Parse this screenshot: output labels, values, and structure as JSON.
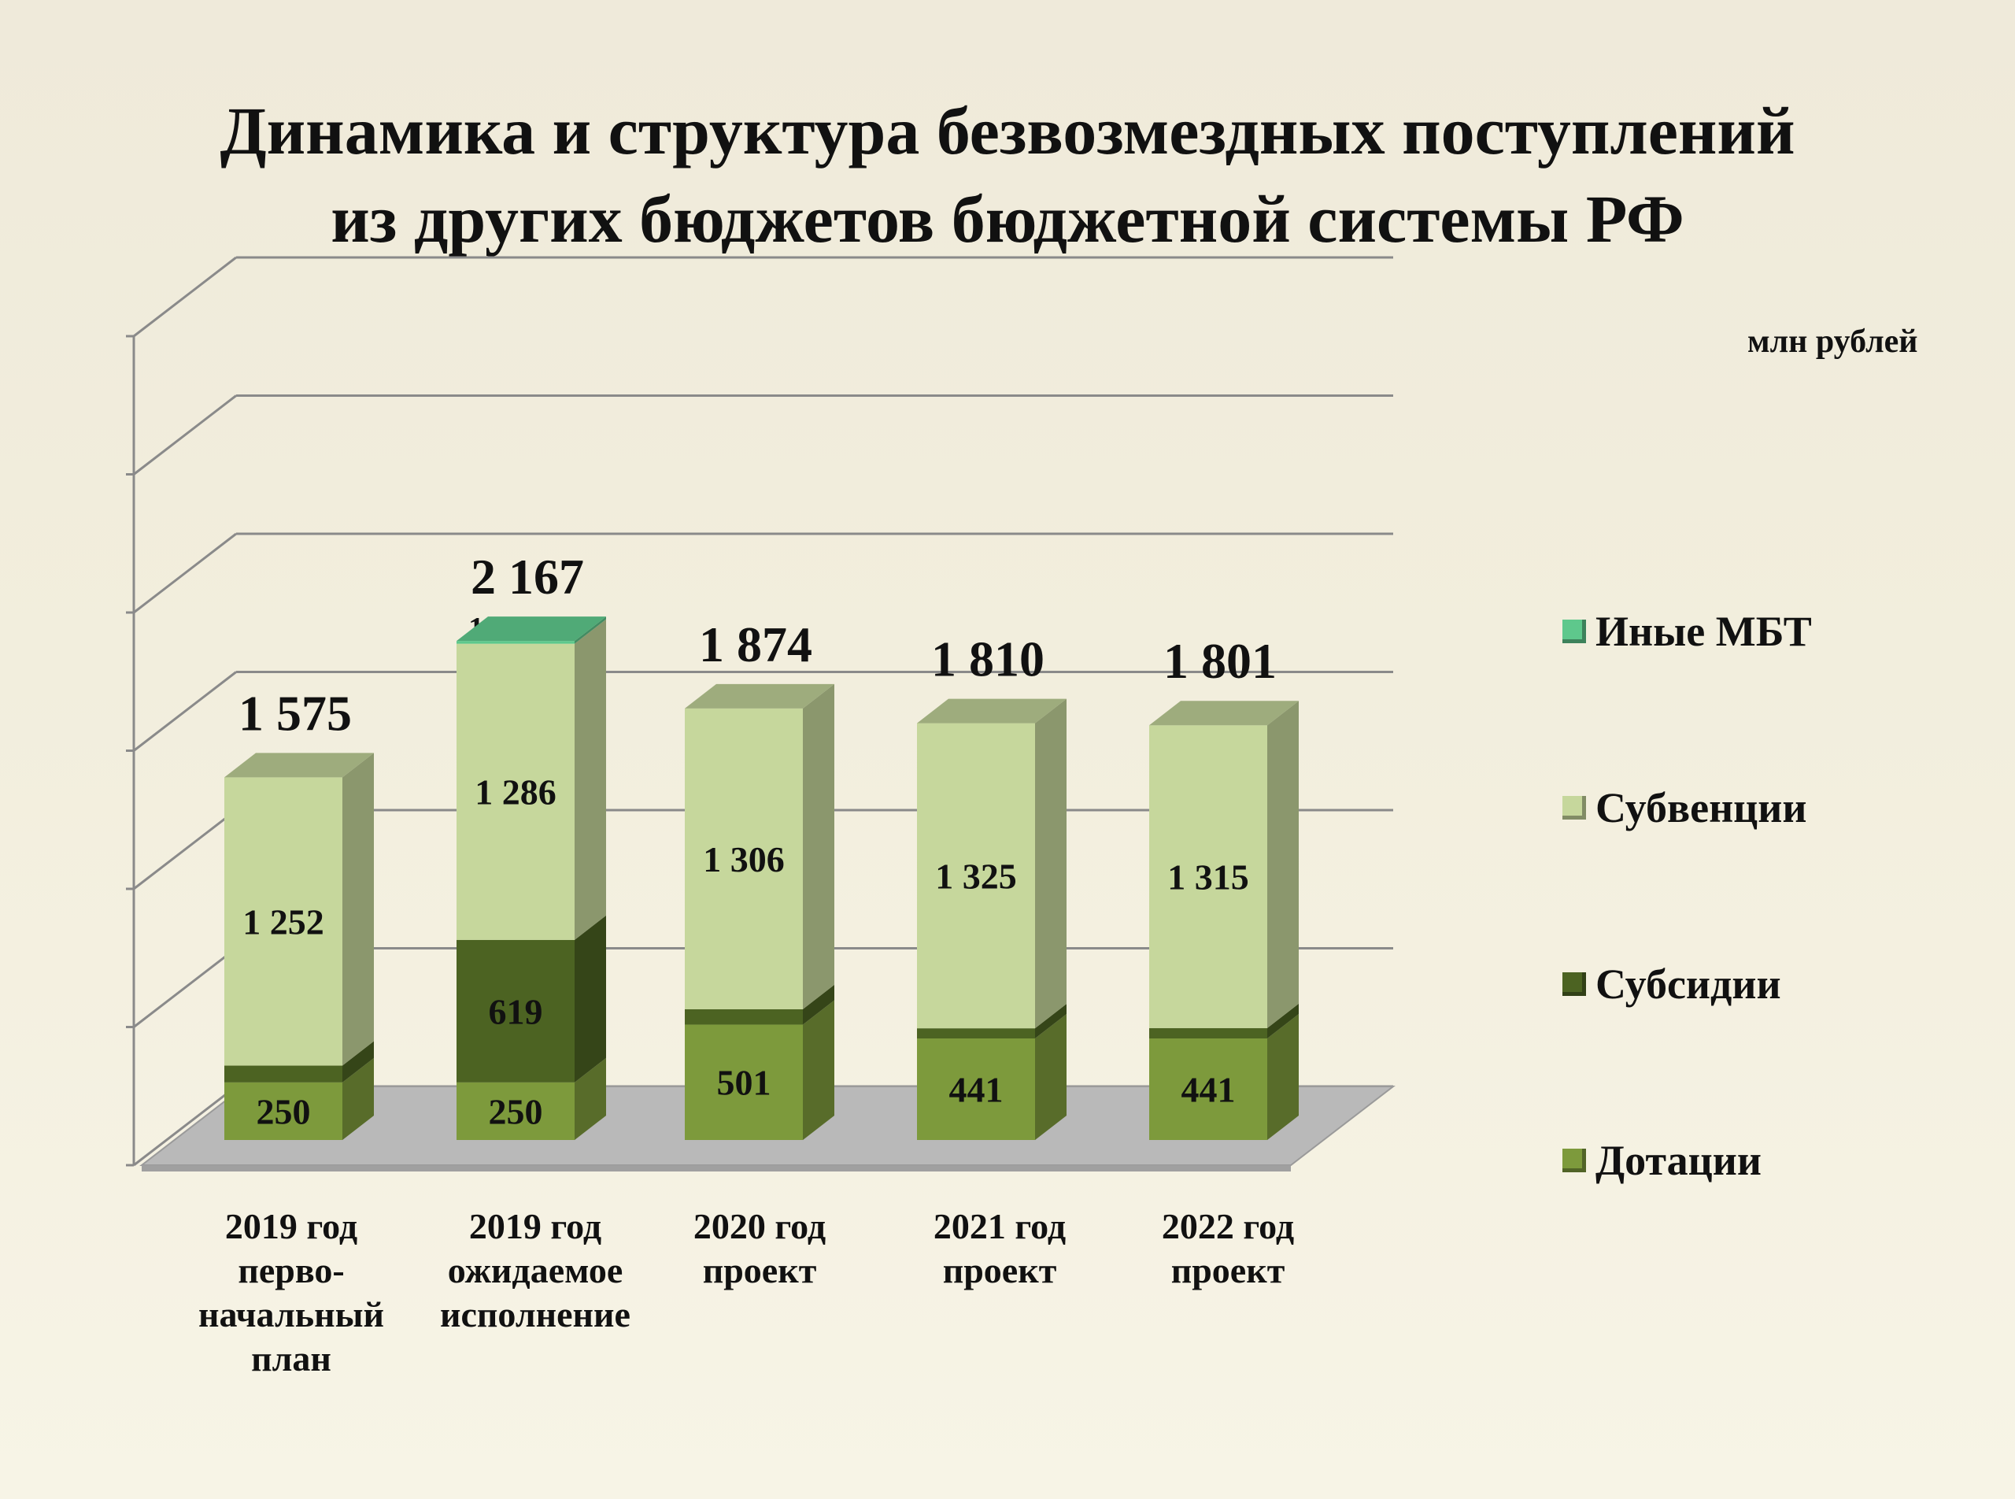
{
  "chart_data": {
    "type": "bar",
    "stacked": true,
    "three_d": true,
    "title": "Динамика и структура безвозмездных поступлений\nиз других бюджетов бюджетной системы РФ",
    "unit": "млн рублей",
    "categories": [
      "2019 год\nперво-\nначальный\nплан",
      "2019 год\nожидаемое\nисполнение",
      "2020 год\nпроект",
      "2021 год\nпроект",
      "2022 год\nпроект"
    ],
    "totals": [
      "1 575",
      "2 167",
      "1 874",
      "1 810",
      "1 801"
    ],
    "series": [
      {
        "name": "Дотации",
        "values": [
          250,
          250,
          501,
          441,
          441
        ],
        "labels": [
          "250",
          "250",
          "501",
          "441",
          "441"
        ],
        "color": "#7d9a3c"
      },
      {
        "name": "Субсидии",
        "values": [
          73,
          619,
          67,
          44,
          45
        ],
        "labels": [
          "73",
          "619",
          "67",
          "44",
          "45"
        ],
        "color": "#4c6322"
      },
      {
        "name": "Субвенции",
        "values": [
          1252,
          1286,
          1306,
          1325,
          1315
        ],
        "labels": [
          "1 252",
          "1 286",
          "1 306",
          "1 325",
          "1 315"
        ],
        "color": "#c6d79c"
      },
      {
        "name": "Иные МБТ",
        "values": [
          0,
          12,
          0,
          0,
          0
        ],
        "labels": [
          "",
          "12",
          "",
          "",
          ""
        ],
        "color": "#5ec88c"
      }
    ],
    "legend_position": "right",
    "grid": true
  }
}
